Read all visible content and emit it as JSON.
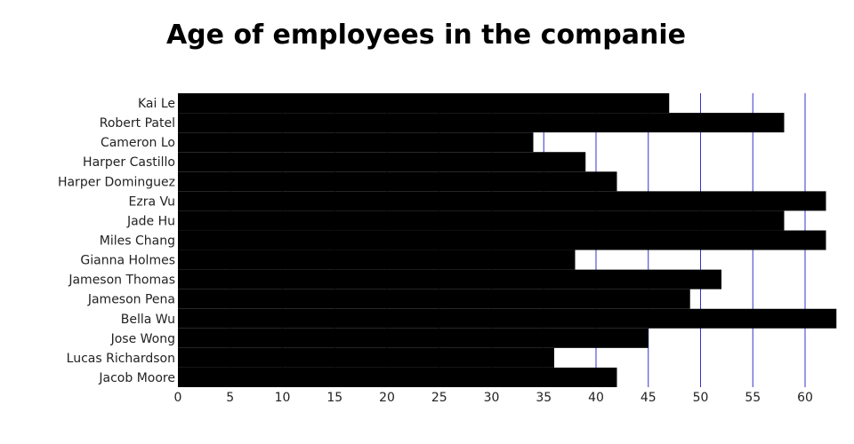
{
  "chart_data": {
    "type": "bar",
    "orientation": "horizontal",
    "title": "Age of employees in the companie",
    "xlabel": "",
    "ylabel": "",
    "categories": [
      "Kai Le",
      "Robert Patel",
      "Cameron Lo",
      "Harper Castillo",
      "Harper Dominguez",
      "Ezra Vu",
      "Jade Hu",
      "Miles Chang",
      "Gianna Holmes",
      "Jameson Thomas",
      "Jameson Pena",
      "Bella Wu",
      "Jose Wong",
      "Lucas Richardson",
      "Jacob Moore"
    ],
    "values": [
      47,
      58,
      34,
      39,
      42,
      62,
      58,
      62,
      38,
      52,
      49,
      63,
      45,
      36,
      42
    ],
    "xlim": [
      0,
      63
    ],
    "xticks": [
      "0",
      "5",
      "10",
      "15",
      "20",
      "25",
      "30",
      "35",
      "40",
      "45",
      "50",
      "55",
      "60"
    ],
    "grid": "vertical",
    "legend": "none",
    "colors": {
      "bar": "#000000",
      "grid": "#3333cc",
      "background": "#ffffff"
    }
  }
}
